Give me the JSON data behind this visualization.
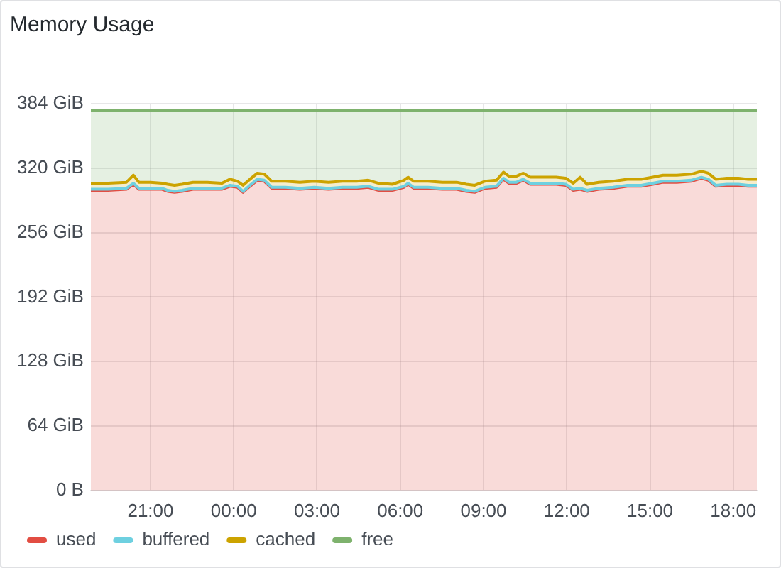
{
  "chart_data": {
    "type": "area",
    "title": "Memory Usage",
    "stacked": true,
    "marker": "none",
    "grid": true,
    "legend": "bottom left",
    "x": [
      "--01-01T18:51",
      "--01-01T19:28",
      "--01-01T20:08",
      "--01-01T20:23",
      "--01-01T20:35",
      "--01-01T21:00",
      "--01-01T21:25",
      "--01-01T21:37",
      "--01-01T21:52",
      "--01-01T22:08",
      "--01-01T22:32",
      "--01-01T23:03",
      "--01-01T23:34",
      "--01-01T23:52",
      "--01-02T00:08",
      "--01-02T00:20",
      "--01-02T00:35",
      "--01-02T00:51",
      "--01-02T01:06",
      "--01-02T01:22",
      "--01-02T01:52",
      "--01-02T02:23",
      "--01-02T02:54",
      "--01-02T03:25",
      "--01-02T03:55",
      "--01-02T04:26",
      "--01-02T04:51",
      "--01-02T05:13",
      "--01-02T05:43",
      "--01-02T06:08",
      "--01-02T06:17",
      "--01-02T06:29",
      "--01-02T07:00",
      "--01-02T07:31",
      "--01-02T08:02",
      "--01-02T08:23",
      "--01-02T08:41",
      "--01-02T09:03",
      "--01-02T09:28",
      "--01-02T09:43",
      "--01-02T09:55",
      "--01-02T10:11",
      "--01-02T10:26",
      "--01-02T10:41",
      "--01-02T11:06",
      "--01-02T11:37",
      "--01-02T11:58",
      "--01-02T12:14",
      "--01-02T12:29",
      "--01-02T12:44",
      "--01-02T13:09",
      "--01-02T13:40",
      "--01-02T14:11",
      "--01-02T14:41",
      "--01-02T15:06",
      "--01-02T15:28",
      "--01-02T15:58",
      "--01-02T16:29",
      "--01-02T16:51",
      "--01-02T17:06",
      "--01-02T17:22",
      "--01-02T17:46",
      "--01-02T18:11",
      "--01-02T18:32",
      "--01-02T18:51"
    ],
    "series": [
      {
        "name": "used",
        "color": "#e24d42",
        "values": [
          298,
          298,
          299,
          304,
          299,
          299,
          299,
          297,
          296,
          297,
          299,
          299,
          299,
          302,
          301,
          296,
          302,
          308,
          307,
          300,
          300,
          299,
          300,
          299,
          300,
          300,
          301,
          298,
          298,
          301,
          304,
          300,
          300,
          299,
          299,
          297,
          296,
          300,
          301,
          309,
          305,
          305,
          308,
          304,
          304,
          304,
          303,
          298,
          299,
          297,
          299,
          300,
          302,
          302,
          304,
          306,
          306,
          307,
          310,
          308,
          302,
          303,
          303,
          302,
          302
        ]
      },
      {
        "name": "buffered",
        "color": "#6ed0e0",
        "values": [
          1,
          1,
          1,
          1,
          1,
          1,
          1,
          1,
          1,
          1,
          1,
          1,
          1,
          1,
          1,
          1,
          1,
          1,
          1,
          1,
          1,
          1,
          1,
          1,
          1,
          1,
          1,
          1,
          1,
          1,
          1,
          1,
          1,
          1,
          1,
          1,
          1,
          1,
          1,
          1,
          1,
          1,
          1,
          1,
          1,
          1,
          1,
          1,
          1,
          1,
          1,
          1,
          1,
          1,
          1,
          1,
          1,
          1,
          1,
          1,
          1,
          1,
          1,
          1,
          1
        ]
      },
      {
        "name": "cached",
        "color": "#cca300",
        "values": [
          6,
          6,
          6,
          8,
          6,
          6,
          5,
          6,
          6,
          6,
          6,
          6,
          5,
          6,
          5,
          6,
          6,
          6,
          6,
          6,
          6,
          6,
          6,
          6,
          6,
          6,
          6,
          6,
          5,
          6,
          6,
          6,
          6,
          6,
          6,
          6,
          6,
          6,
          6,
          6,
          6,
          6,
          6,
          6,
          6,
          6,
          6,
          6,
          11,
          6,
          6,
          6,
          6,
          6,
          6,
          6,
          6,
          6,
          6,
          6,
          6,
          6,
          6,
          6,
          6
        ]
      },
      {
        "name": "free",
        "color": "#7eb26d",
        "values": [
          72,
          72,
          71,
          64,
          71,
          71,
          72,
          73,
          74,
          73,
          71,
          71,
          72,
          68,
          70,
          74,
          68,
          62,
          63,
          70,
          70,
          71,
          70,
          71,
          70,
          70,
          69,
          72,
          73,
          69,
          66,
          70,
          70,
          71,
          71,
          73,
          74,
          70,
          69,
          61,
          65,
          65,
          62,
          66,
          66,
          66,
          67,
          72,
          66,
          73,
          71,
          70,
          68,
          68,
          66,
          64,
          64,
          63,
          60,
          62,
          68,
          67,
          67,
          68,
          68
        ]
      }
    ],
    "xlim": [
      "--01-01T18:51",
      "--01-02T18:51"
    ],
    "xticks": [
      {
        "value": "--01-01T21:00",
        "label": "21:00"
      },
      {
        "value": "--01-02T00:00",
        "label": "00:00"
      },
      {
        "value": "--01-02T03:00",
        "label": "03:00"
      },
      {
        "value": "--01-02T06:00",
        "label": "06:00"
      },
      {
        "value": "--01-02T09:00",
        "label": "09:00"
      },
      {
        "value": "--01-02T12:00",
        "label": "12:00"
      },
      {
        "value": "--01-02T15:00",
        "label": "15:00"
      },
      {
        "value": "--01-02T18:00",
        "label": "18:00"
      }
    ],
    "ylim": [
      0,
      384
    ],
    "yticks": [
      {
        "value": 0,
        "label": "0 B"
      },
      {
        "value": 64,
        "label": "64 GiB"
      },
      {
        "value": 128,
        "label": "128 GiB"
      },
      {
        "value": 192,
        "label": "192 GiB"
      },
      {
        "value": 256,
        "label": "256 GiB"
      },
      {
        "value": 320,
        "label": "320 GiB"
      },
      {
        "value": 384,
        "label": "384 GiB"
      }
    ]
  }
}
